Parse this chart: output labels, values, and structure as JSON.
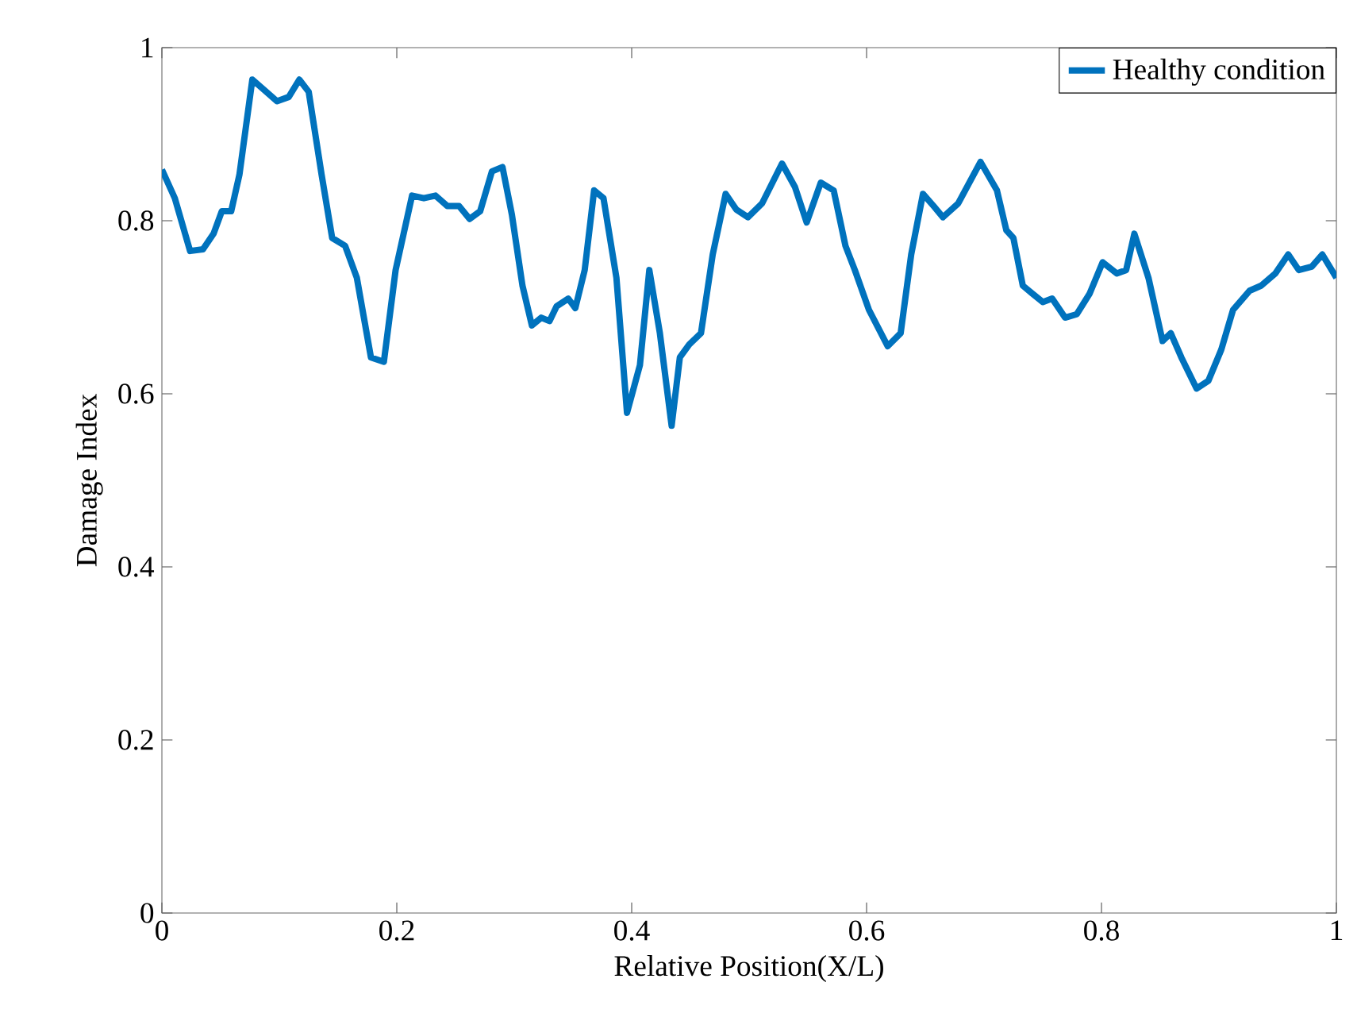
{
  "chart_data": {
    "type": "line",
    "xlabel": "Relative Position(X/L)",
    "ylabel": "Damage Index",
    "xlim": [
      0,
      1
    ],
    "ylim": [
      0,
      1
    ],
    "xticks": [
      0,
      0.2,
      0.4,
      0.6,
      0.8,
      1
    ],
    "yticks": [
      0,
      0.2,
      0.4,
      0.6,
      0.8,
      1
    ],
    "grid": false,
    "legend": "top right",
    "marker": "none",
    "line_style": "solid",
    "series": [
      {
        "name": "Healthy condition",
        "color": "#0072bd",
        "x": [
          0,
          0.011,
          0.024,
          0.035,
          0.044,
          0.051,
          0.059,
          0.066,
          0.077,
          0.088,
          0.098,
          0.108,
          0.117,
          0.125,
          0.136,
          0.145,
          0.156,
          0.166,
          0.178,
          0.189,
          0.199,
          0.213,
          0.223,
          0.233,
          0.243,
          0.253,
          0.262,
          0.271,
          0.281,
          0.29,
          0.298,
          0.307,
          0.315,
          0.323,
          0.33,
          0.336,
          0.346,
          0.352,
          0.36,
          0.368,
          0.376,
          0.387,
          0.396,
          0.407,
          0.415,
          0.424,
          0.434,
          0.441,
          0.449,
          0.459,
          0.469,
          0.48,
          0.489,
          0.499,
          0.511,
          0.528,
          0.539,
          0.549,
          0.561,
          0.572,
          0.582,
          0.59,
          0.602,
          0.618,
          0.629,
          0.638,
          0.648,
          0.657,
          0.665,
          0.678,
          0.697,
          0.711,
          0.719,
          0.725,
          0.733,
          0.741,
          0.75,
          0.758,
          0.769,
          0.779,
          0.79,
          0.801,
          0.813,
          0.821,
          0.828,
          0.84,
          0.852,
          0.859,
          0.868,
          0.881,
          0.891,
          0.902,
          0.912,
          0.926,
          0.936,
          0.948,
          0.959,
          0.968,
          0.979,
          0.988,
          1.0
        ],
        "values": [
          0.859,
          0.826,
          0.765,
          0.767,
          0.785,
          0.811,
          0.811,
          0.853,
          0.963,
          0.95,
          0.938,
          0.943,
          0.963,
          0.949,
          0.853,
          0.78,
          0.771,
          0.734,
          0.642,
          0.637,
          0.743,
          0.829,
          0.826,
          0.829,
          0.817,
          0.817,
          0.802,
          0.811,
          0.857,
          0.862,
          0.807,
          0.725,
          0.679,
          0.688,
          0.684,
          0.701,
          0.71,
          0.699,
          0.743,
          0.835,
          0.826,
          0.734,
          0.578,
          0.633,
          0.743,
          0.67,
          0.563,
          0.642,
          0.657,
          0.67,
          0.761,
          0.831,
          0.813,
          0.804,
          0.82,
          0.866,
          0.839,
          0.798,
          0.844,
          0.835,
          0.771,
          0.743,
          0.697,
          0.655,
          0.67,
          0.761,
          0.831,
          0.817,
          0.804,
          0.82,
          0.868,
          0.835,
          0.789,
          0.78,
          0.725,
          0.716,
          0.706,
          0.71,
          0.688,
          0.692,
          0.716,
          0.752,
          0.739,
          0.743,
          0.785,
          0.734,
          0.661,
          0.67,
          0.642,
          0.606,
          0.615,
          0.651,
          0.697,
          0.719,
          0.725,
          0.739,
          0.761,
          0.743,
          0.747,
          0.761,
          0.734
        ]
      }
    ]
  }
}
